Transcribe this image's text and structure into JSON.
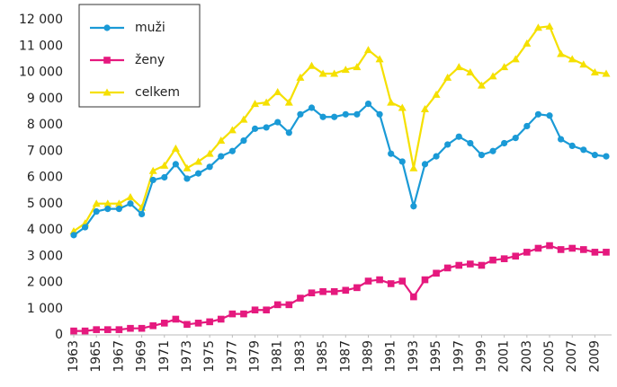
{
  "chart_data": {
    "type": "line",
    "x": [
      1963,
      1964,
      1965,
      1966,
      1967,
      1968,
      1969,
      1970,
      1971,
      1972,
      1973,
      1974,
      1975,
      1976,
      1977,
      1978,
      1979,
      1980,
      1981,
      1982,
      1983,
      1984,
      1985,
      1986,
      1987,
      1988,
      1989,
      1990,
      1991,
      1992,
      1993,
      1994,
      1995,
      1996,
      1997,
      1998,
      1999,
      2000,
      2001,
      2002,
      2003,
      2004,
      2005,
      2006,
      2007,
      2008,
      2009,
      2010
    ],
    "xlim": [
      1963,
      2010
    ],
    "xticks": [
      1963,
      1965,
      1967,
      1969,
      1971,
      1973,
      1975,
      1977,
      1979,
      1981,
      1983,
      1985,
      1987,
      1989,
      1991,
      1993,
      1995,
      1997,
      1999,
      2001,
      2003,
      2005,
      2007,
      2009
    ],
    "ylim": [
      0,
      12000
    ],
    "yticks": [
      0,
      {
        "value": 1000,
        "label": "1 000"
      },
      {
        "value": 2000,
        "label": "2 000"
      },
      {
        "value": 3000,
        "label": "3 000"
      },
      {
        "value": 4000,
        "label": "4 000"
      },
      {
        "value": 5000,
        "label": "5 000"
      },
      {
        "value": 6000,
        "label": "6 000"
      },
      {
        "value": 7000,
        "label": "7 000"
      },
      {
        "value": 8000,
        "label": "8 000"
      },
      {
        "value": 9000,
        "label": "9 000"
      },
      {
        "value": 10000,
        "label": "10 000"
      },
      {
        "value": 11000,
        "label": "11 000"
      },
      {
        "value": 12000,
        "label": "12 000"
      }
    ],
    "legend": "upper left",
    "series": [
      {
        "name": "muži",
        "color": "#1a9ad6",
        "marker": "circle",
        "values": [
          3800,
          4100,
          4700,
          4800,
          4800,
          5000,
          4600,
          5900,
          6000,
          6500,
          5950,
          6150,
          6400,
          6800,
          7000,
          7400,
          7850,
          7900,
          8100,
          7700,
          8400,
          8650,
          8300,
          8300,
          8400,
          8400,
          8800,
          8400,
          6900,
          6600,
          4900,
          6500,
          6800,
          7250,
          7550,
          7300,
          6850,
          7000,
          7300,
          7500,
          7950,
          8400,
          8350,
          7450,
          7200,
          7050,
          6850,
          6800
        ]
      },
      {
        "name": "ženy",
        "color": "#e5197e",
        "marker": "square",
        "values": [
          150,
          150,
          200,
          200,
          200,
          250,
          250,
          350,
          450,
          600,
          400,
          450,
          500,
          600,
          800,
          800,
          950,
          950,
          1150,
          1150,
          1400,
          1600,
          1650,
          1650,
          1700,
          1800,
          2050,
          2100,
          1950,
          2050,
          1450,
          2100,
          2350,
          2550,
          2650,
          2700,
          2650,
          2850,
          2900,
          3000,
          3150,
          3300,
          3400,
          3250,
          3300,
          3250,
          3150,
          3150
        ]
      },
      {
        "name": "celkem",
        "color": "#f5e000",
        "marker": "triangle",
        "values": [
          3950,
          4250,
          5000,
          5000,
          5000,
          5250,
          4850,
          6250,
          6450,
          7100,
          6350,
          6600,
          6900,
          7400,
          7800,
          8200,
          8800,
          8850,
          9250,
          8850,
          9800,
          10250,
          9950,
          9950,
          10100,
          10200,
          10850,
          10500,
          8850,
          8650,
          6350,
          8600,
          9150,
          9800,
          10200,
          10000,
          9500,
          9850,
          10200,
          10500,
          11100,
          11700,
          11750,
          10700,
          10500,
          10300,
          10000,
          9950
        ]
      }
    ]
  }
}
